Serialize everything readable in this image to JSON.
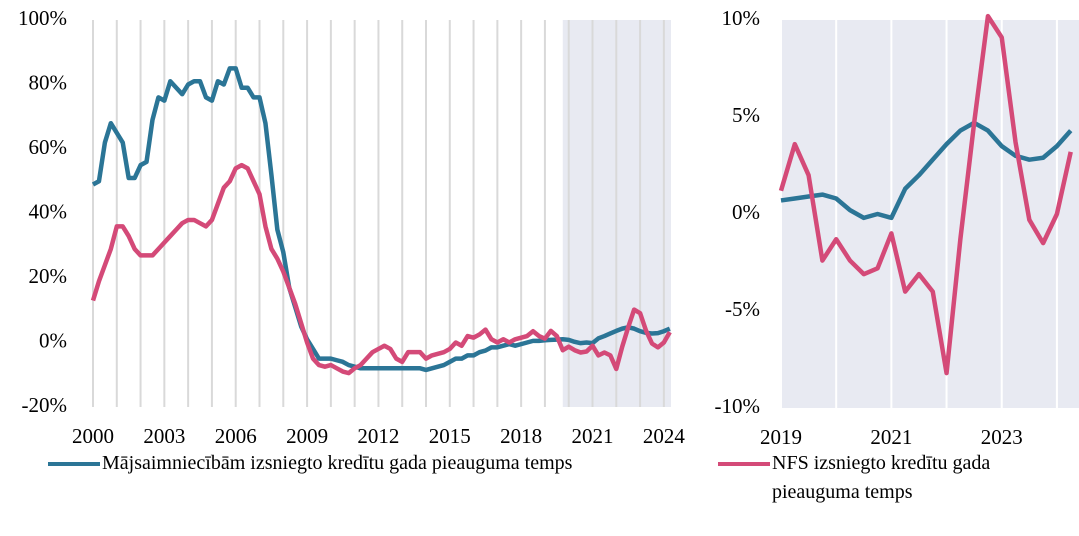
{
  "chart_data": [
    {
      "type": "line",
      "x": [
        2000,
        2000.25,
        2000.5,
        2000.75,
        2001,
        2001.25,
        2001.5,
        2001.75,
        2002,
        2002.25,
        2002.5,
        2002.75,
        2003,
        2003.25,
        2003.5,
        2003.75,
        2004,
        2004.25,
        2004.5,
        2004.75,
        2005,
        2005.25,
        2005.5,
        2005.75,
        2006,
        2006.25,
        2006.5,
        2006.75,
        2007,
        2007.25,
        2007.5,
        2007.75,
        2008,
        2008.25,
        2008.5,
        2008.75,
        2009,
        2009.25,
        2009.5,
        2009.75,
        2010,
        2010.25,
        2010.5,
        2010.75,
        2011,
        2011.25,
        2011.5,
        2011.75,
        2012,
        2012.25,
        2012.5,
        2012.75,
        2013,
        2013.25,
        2013.5,
        2013.75,
        2014,
        2014.25,
        2014.5,
        2014.75,
        2015,
        2015.25,
        2015.5,
        2015.75,
        2016,
        2016.25,
        2016.5,
        2016.75,
        2017,
        2017.25,
        2017.5,
        2017.75,
        2018,
        2018.25,
        2018.5,
        2018.75,
        2019,
        2019.25,
        2019.5,
        2019.75,
        2020,
        2020.25,
        2020.5,
        2020.75,
        2021,
        2021.25,
        2021.5,
        2021.75,
        2022,
        2022.25,
        2022.5,
        2022.75,
        2023,
        2023.25,
        2023.5,
        2023.75,
        2024,
        2024.25
      ],
      "series": [
        {
          "name": "Mājsaimniecībām izsniegto kredītu gada pieauguma temps",
          "color": "#2b7596",
          "values": [
            49,
            50,
            62,
            68,
            65,
            62,
            51,
            51,
            55,
            56,
            69,
            76,
            75,
            81,
            79,
            77,
            80,
            81,
            81,
            76,
            75,
            81,
            80,
            85,
            85,
            79,
            79,
            76,
            76,
            68,
            52,
            35,
            28,
            17,
            11,
            5,
            1,
            -2,
            -5,
            -5,
            -5,
            -5.5,
            -6,
            -7,
            -7.5,
            -8,
            -8,
            -8,
            -8,
            -8,
            -8,
            -8,
            -8,
            -8,
            -8,
            -8,
            -8.5,
            -8,
            -7.5,
            -7,
            -6,
            -5,
            -5,
            -4,
            -4,
            -3,
            -2.5,
            -1.5,
            -1.5,
            -1,
            -0.5,
            -1,
            -0.5,
            0,
            0.5,
            0.5,
            0.7,
            0.8,
            0.9,
            1,
            0.8,
            0.2,
            -0.2,
            0,
            -0.2,
            1.3,
            2,
            2.8,
            3.6,
            4.3,
            4.7,
            4.3,
            3.5,
            3,
            2.8,
            2.9,
            3.5,
            4.3
          ]
        },
        {
          "color": "#d44a78",
          "values": [
            13,
            19,
            24,
            29,
            36,
            36,
            33,
            29,
            27,
            27,
            27,
            29,
            31,
            33,
            35,
            37,
            38,
            38,
            37,
            36,
            38,
            43,
            48,
            50,
            54,
            55,
            54,
            50,
            46,
            36,
            29,
            26,
            22,
            17,
            12,
            6,
            0,
            -5,
            -7,
            -7.5,
            -7,
            -8,
            -9,
            -9.5,
            -8,
            -7,
            -5,
            -3,
            -2,
            -1,
            -2,
            -5,
            -6,
            -3,
            -3,
            -3,
            -5,
            -4,
            -3.5,
            -3,
            -2,
            0,
            -1,
            2,
            1.5,
            2.5,
            4,
            1,
            0,
            1,
            0,
            1,
            1.5,
            2,
            3.5,
            2,
            1.2,
            3.6,
            2,
            -2.4,
            -1.3,
            -2.4,
            -3.1,
            -2.8,
            -1,
            -4,
            -3.1,
            -4,
            -8.2,
            -1.3,
            4.7,
            10.2,
            9.1,
            3.7,
            -0.3,
            -1.5,
            0,
            3.2
          ]
        }
      ],
      "xlim": [
        2000,
        2024.3
      ],
      "xticks": [
        2000,
        2003,
        2006,
        2009,
        2012,
        2015,
        2018,
        2021,
        2024
      ],
      "x_gridlines": [
        2000,
        2001,
        2002,
        2003,
        2004,
        2005,
        2006,
        2007,
        2008,
        2009,
        2010,
        2011,
        2012,
        2013,
        2014,
        2015,
        2016,
        2017,
        2018,
        2019,
        2020,
        2021,
        2022,
        2023,
        2024
      ],
      "shade_xlim": [
        2019.75,
        2024.3
      ],
      "ylim": [
        -20,
        100
      ],
      "yticks": [
        {
          "value": -20,
          "label": "-20%"
        },
        {
          "value": 0,
          "label": "0%"
        },
        {
          "value": 20,
          "label": "20%"
        },
        {
          "value": 40,
          "label": "40%"
        },
        {
          "value": 60,
          "label": "60%"
        },
        {
          "value": 80,
          "label": "80%"
        },
        {
          "value": 100,
          "label": "100%"
        }
      ]
    },
    {
      "type": "line",
      "x": [
        2019,
        2019.25,
        2019.5,
        2019.75,
        2020,
        2020.25,
        2020.5,
        2020.75,
        2021,
        2021.25,
        2021.5,
        2021.75,
        2022,
        2022.25,
        2022.5,
        2022.75,
        2023,
        2023.25,
        2023.5,
        2023.75,
        2024,
        2024.25
      ],
      "series": [
        {
          "color": "#2b7596",
          "values": [
            0.7,
            0.8,
            0.9,
            1,
            0.8,
            0.2,
            -0.2,
            0,
            -0.2,
            1.3,
            2,
            2.8,
            3.6,
            4.3,
            4.7,
            4.3,
            3.5,
            3,
            2.8,
            2.9,
            3.5,
            4.3
          ]
        },
        {
          "name": "NFS izsniegto kredītu gada pieauguma temps",
          "color": "#d44a78",
          "values": [
            1.2,
            3.6,
            2,
            -2.4,
            -1.3,
            -2.4,
            -3.1,
            -2.8,
            -1,
            -4,
            -3.1,
            -4,
            -8.2,
            -1.3,
            4.7,
            10.2,
            9.1,
            3.7,
            -0.3,
            -1.5,
            0,
            3.2
          ]
        }
      ],
      "xlim": [
        2019,
        2024.4
      ],
      "xticks": [
        2019,
        2021,
        2023
      ],
      "x_gridlines": [
        2019,
        2020,
        2021,
        2022,
        2023,
        2024
      ],
      "shade_xlim": [
        2019,
        2024.4
      ],
      "ylim": [
        -10,
        10
      ],
      "yticks": [
        {
          "value": -10,
          "label": "-10%"
        },
        {
          "value": -5,
          "label": "-5%"
        },
        {
          "value": 0,
          "label": "0%"
        },
        {
          "value": 5,
          "label": "5%"
        },
        {
          "value": 10,
          "label": "10%"
        }
      ]
    }
  ]
}
